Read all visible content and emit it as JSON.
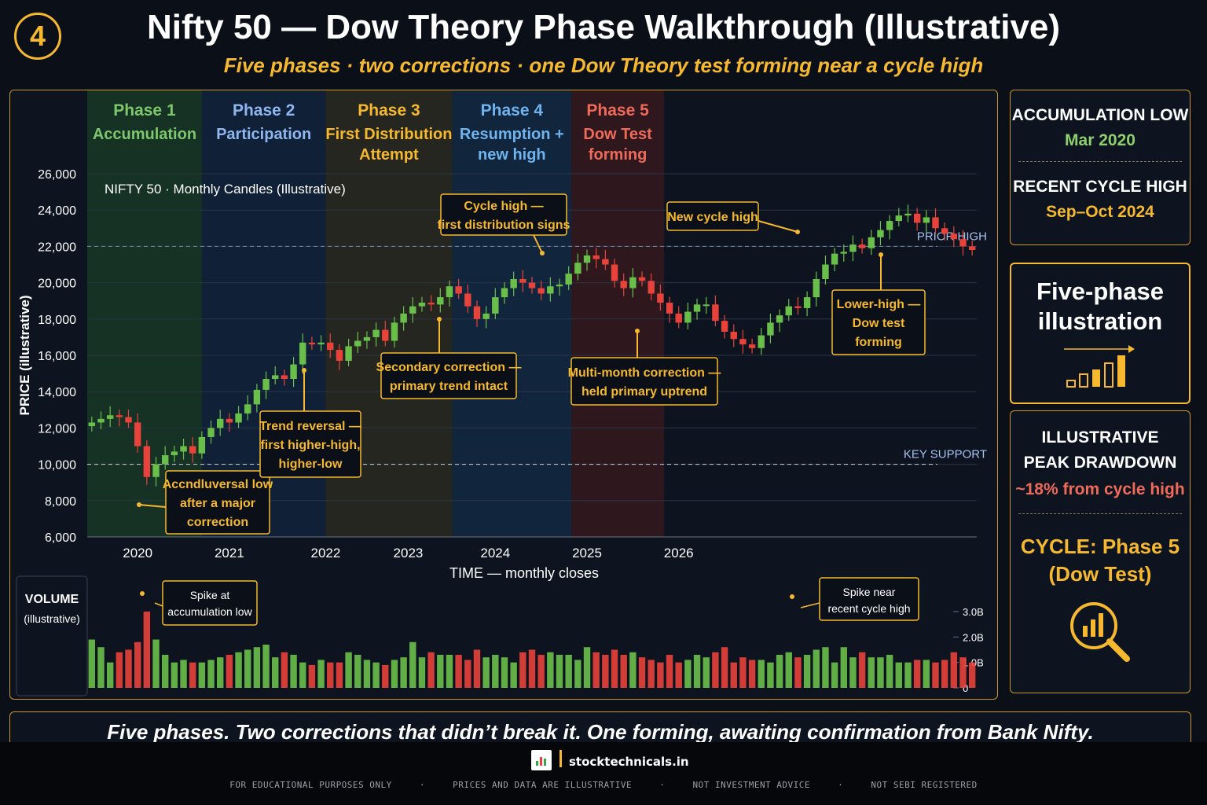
{
  "header": {
    "badge": "4",
    "title": "Nifty 50 — Dow Theory Phase Walkthrough (Illustrative)",
    "subtitle": "Five phases · two corrections · one Dow Theory test forming near a cycle high"
  },
  "colors": {
    "accent": "#f5b82e",
    "up": "#6abf4b",
    "down": "#e8433a",
    "phase1": "#1d4a2a",
    "phase2": "#13294a",
    "phase3": "#3a3420",
    "phase4": "#163456",
    "phase5": "#4a1c1e"
  },
  "chart_data": {
    "type": "candlestick",
    "title": "NIFTY 50 · Monthly Candles (Illustrative)",
    "xlabel": "TIME — monthly closes",
    "ylabel": "PRICE (illustrative)",
    "ylim": [
      6000,
      26000
    ],
    "yticks": [
      "6,000",
      "8,000",
      "10,000",
      "12,000",
      "14,000",
      "16,000",
      "18,000",
      "20,000",
      "22,000",
      "24,000",
      "26,000"
    ],
    "ytick_values": [
      6000,
      8000,
      10000,
      12000,
      14000,
      16000,
      18000,
      20000,
      22000,
      24000,
      26000
    ],
    "xticks": [
      "2020",
      "2021",
      "2022",
      "2023",
      "2024",
      "2025",
      "2026"
    ],
    "xtick_months": [
      5,
      15,
      25.5,
      34.5,
      44,
      54,
      64
    ],
    "grid": true,
    "phases": [
      {
        "name": "Phase 1",
        "desc": [
          "Accumulation"
        ],
        "start": -0.5,
        "end": 12,
        "color": "#7fc76b"
      },
      {
        "name": "Phase 2",
        "desc": [
          "Participation"
        ],
        "start": 12,
        "end": 25.5,
        "color": "#8fb6ef"
      },
      {
        "name": "Phase 3",
        "desc": [
          "First Distribution",
          "Attempt"
        ],
        "start": 25.5,
        "end": 39.3,
        "color": "#f5b82e"
      },
      {
        "name": "Phase 4",
        "desc": [
          "Resumption +",
          "new high"
        ],
        "start": 39.3,
        "end": 52.3,
        "color": "#6fb3ef"
      },
      {
        "name": "Phase 5",
        "desc": [
          "Dow Test",
          "forming"
        ],
        "start": 52.3,
        "end": 62.4,
        "color": "#f06a5a"
      }
    ],
    "reference_lines": [
      {
        "label": "PRIOR HIGH",
        "value": 22000
      },
      {
        "label": "KEY SUPPORT",
        "value": 10000
      }
    ],
    "closes": [
      12300,
      12500,
      12700,
      12600,
      12300,
      11000,
      9300,
      10000,
      10500,
      10700,
      11000,
      10600,
      11500,
      12000,
      12500,
      12300,
      12800,
      13300,
      14100,
      14700,
      14900,
      14700,
      15500,
      16700,
      16600,
      16700,
      16300,
      15700,
      16500,
      16800,
      17000,
      17400,
      16800,
      17800,
      18300,
      18700,
      18900,
      18800,
      19200,
      19800,
      19400,
      18700,
      18000,
      18300,
      19200,
      19700,
      20200,
      20000,
      19700,
      19400,
      19800,
      19900,
      20500,
      21100,
      21500,
      21300,
      21000,
      20100,
      19700,
      20300,
      20100,
      19400,
      18900,
      18300,
      17800,
      18400,
      18800,
      18800,
      17900,
      17300,
      16900,
      16600,
      16400,
      17100,
      17800,
      18200,
      18700,
      18600,
      19200,
      20200,
      21000,
      21600,
      21700,
      22100,
      21900,
      22500,
      22900,
      23400,
      23700,
      23800,
      23300,
      23600,
      23000,
      22700,
      22400,
      22000,
      21800
    ],
    "volume": {
      "label": "VOLUME",
      "sublabel": "(illustrative)",
      "yticks": [
        "0",
        "1.0B",
        "2.0B",
        "3.0B"
      ],
      "ytick_values": [
        0,
        1.0,
        2.0,
        3.0
      ],
      "values": [
        1.9,
        1.6,
        1.0,
        1.4,
        1.5,
        1.8,
        3.0,
        1.9,
        1.3,
        1.0,
        1.1,
        1.0,
        1.0,
        1.1,
        1.2,
        1.3,
        1.4,
        1.5,
        1.6,
        1.7,
        1.2,
        1.4,
        1.3,
        1.0,
        0.9,
        1.1,
        1.0,
        1.0,
        1.4,
        1.3,
        1.1,
        1.0,
        0.9,
        1.1,
        1.2,
        1.8,
        1.2,
        1.4,
        1.3,
        1.3,
        1.3,
        1.1,
        1.5,
        1.2,
        1.3,
        1.2,
        1.0,
        1.4,
        1.5,
        1.3,
        1.4,
        1.3,
        1.3,
        1.1,
        1.6,
        1.4,
        1.3,
        1.5,
        1.3,
        1.4,
        1.2,
        1.1,
        1.0,
        1.3,
        1.0,
        1.1,
        1.3,
        1.2,
        1.4,
        1.6,
        1.0,
        1.2,
        1.1,
        1.1,
        1.0,
        1.3,
        1.4,
        1.2,
        1.3,
        1.5,
        1.6,
        1.0,
        1.6,
        1.2,
        1.4,
        1.2,
        1.2,
        1.3,
        1.0,
        1.0,
        1.1,
        1.1,
        1.0,
        1.1,
        1.4,
        1.2,
        1.0
      ]
    },
    "annotations": [
      {
        "text": [
          "Accndluversal low",
          "after a major",
          "correction"
        ],
        "target_month": 6,
        "target_price": 8300
      },
      {
        "text": [
          "Trend reversal —",
          "first higher-high,",
          "higher-low"
        ],
        "target_month": 18,
        "target_price": 14000
      },
      {
        "text": [
          "Secondary correction —",
          "primary trend intact"
        ],
        "target_month": 28,
        "target_price": 16700
      },
      {
        "text": [
          "Cycle high —",
          "first distribution signs"
        ],
        "target_month": 35,
        "target_price": 21500
      },
      {
        "text": [
          "Multi-month correction —",
          "held primary uptrend"
        ],
        "target_month": 42,
        "target_price": 16400
      },
      {
        "text": [
          "New cycle high"
        ],
        "target_month": 55,
        "target_price": 22800
      },
      {
        "text": [
          "Lower-high —",
          "Dow test",
          "forming"
        ],
        "target_month": 60,
        "target_price": 21600
      }
    ],
    "volume_annotations": [
      {
        "text": [
          "Spike at",
          "accumulation low"
        ]
      },
      {
        "text": [
          "Spike near",
          "recent cycle high"
        ]
      }
    ]
  },
  "sidebar": {
    "accumulation_low_label": "ACCUMULATION LOW",
    "accumulation_low_value": "Mar 2020",
    "recent_high_label": "RECENT CYCLE HIGH",
    "recent_high_value": "Sep–Oct 2024",
    "five_phase_line1": "Five-phase",
    "five_phase_line2": "illustration",
    "drawdown_label1": "ILLUSTRATIVE",
    "drawdown_label2": "PEAK DRAWDOWN",
    "drawdown_value": "~18% from cycle high",
    "cycle_line1": "CYCLE: Phase 5",
    "cycle_line2": "(Dow Test)"
  },
  "bottom_banner": "Five phases.  Two corrections that didn’t break it. One forming, awaiting confirmation from Bank Nifty.",
  "footer": {
    "site": "stocktechnicals.in",
    "disclaimers": [
      "FOR EDUCATIONAL PURPOSES ONLY",
      "·",
      "PRICES AND DATA ARE ILLUSTRATIVE",
      "·",
      "NOT INVESTMENT ADVICE",
      "·",
      "NOT SEBI REGISTERED"
    ]
  }
}
